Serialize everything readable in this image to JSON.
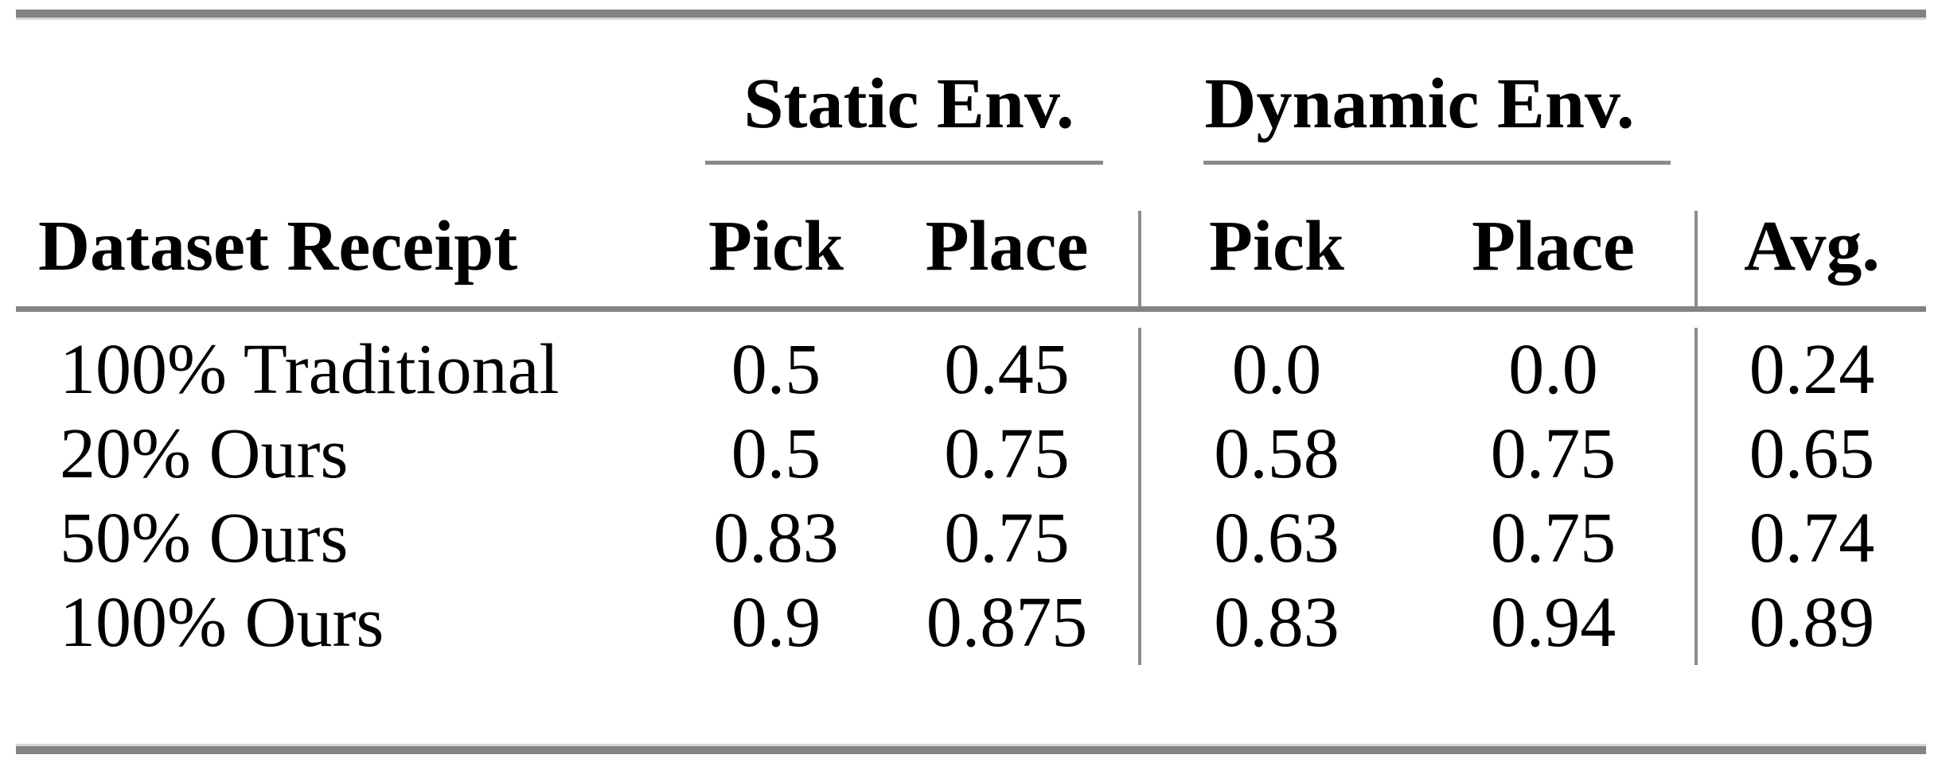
{
  "table": {
    "groups": [
      {
        "label": "Static Env."
      },
      {
        "label": "Dynamic Env."
      }
    ],
    "columns": [
      "Dataset Receipt",
      "Pick",
      "Place",
      "Pick",
      "Place",
      "Avg."
    ],
    "rows": [
      {
        "label": "100% Traditional",
        "values": [
          "0.5",
          "0.45",
          "0.0",
          "0.0",
          "0.24"
        ]
      },
      {
        "label": "20% Ours",
        "values": [
          "0.5",
          "0.75",
          "0.58",
          "0.75",
          "0.65"
        ]
      },
      {
        "label": "50% Ours",
        "values": [
          "0.83",
          "0.75",
          "0.63",
          "0.75",
          "0.74"
        ]
      },
      {
        "label": "100% Ours",
        "values": [
          "0.9",
          "0.875",
          "0.83",
          "0.94",
          "0.89"
        ]
      }
    ],
    "colors": {
      "rule": "#838383",
      "rule_edge": "#d6d6d6",
      "cmidrule": "#8a8a8a",
      "vline": "#8c8c8c",
      "text": "#000000",
      "background": "#ffffff"
    }
  }
}
